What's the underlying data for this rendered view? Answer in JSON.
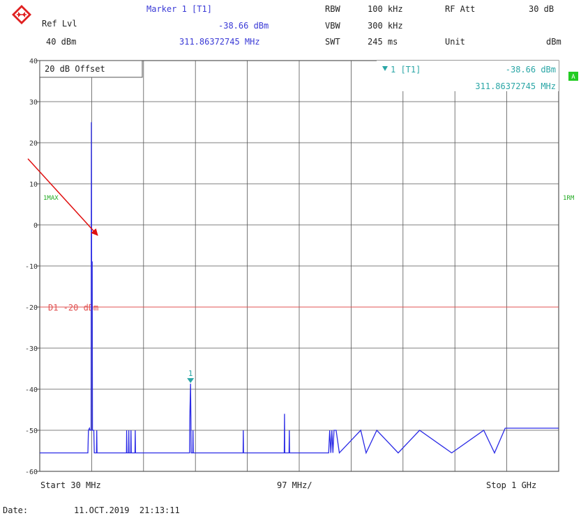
{
  "header": {
    "marker_title": "Marker 1 [T1]",
    "ref_lvl_label": "Ref Lvl",
    "ref_lvl_value": "40 dBm",
    "marker_level": "-38.66 dBm",
    "marker_freq": "311.86372745 MHz",
    "rbw_label": "RBW",
    "rbw_value": "100 kHz",
    "vbw_label": "VBW",
    "vbw_value": "300 kHz",
    "swt_label": "SWT",
    "swt_value": "245 ms",
    "rfatt_label": "RF Att",
    "rfatt_value": "30 dB",
    "unit_label": "Unit",
    "unit_value": "dBm"
  },
  "plot": {
    "offset_label": "20 dB Offset",
    "marker_box_label": "1  [T1]",
    "marker_box_level": "-38.66 dBm",
    "marker_box_freq": "311.86372745 MHz",
    "side_badge": "A",
    "left_trace_label": "1MAX",
    "right_trace_label": "1RM",
    "display_line_label": "D1 -20 dBm",
    "marker_number": "1"
  },
  "footer": {
    "start_label": "Start 30 MHz",
    "span_label": "97 MHz/",
    "stop_label": "Stop 1 GHz",
    "date_label": "Date:",
    "date_value": "11.OCT.2019  21:13:11"
  },
  "colors": {
    "trace": "#2a2ae6",
    "display_line": "#e05050",
    "marker": "#2aa6a6",
    "annotation_arrow": "#e01010",
    "grid": "#555555",
    "badge": "#22cc22"
  },
  "chart_data": {
    "type": "line",
    "title": "",
    "xlabel": "",
    "ylabel": "",
    "xlim": [
      30,
      1000
    ],
    "ylim": [
      -60,
      40
    ],
    "yticks": [
      40,
      30,
      20,
      10,
      0,
      -10,
      -20,
      -30,
      -40,
      -50,
      -60
    ],
    "ytick_labels": [
      "40",
      "30",
      "20",
      "10",
      "0",
      "-10",
      "-20",
      "-30",
      "-40",
      "-50",
      "-60"
    ],
    "x_units": "MHz",
    "y_units": "dBm",
    "grid": true,
    "display_line": -20,
    "marker": {
      "x": 311.86,
      "y": -38.66
    },
    "series": [
      {
        "x": [
          30,
          120,
          121,
          123,
          124,
          126,
          126.5,
          127,
          128,
          128.5,
          129,
          131,
          132,
          136,
          136.5,
          137,
          192,
          192.5,
          193,
          196,
          196.5,
          197,
          200,
          200.5,
          201,
          208,
          208.5,
          209,
          310,
          310.5,
          311.86,
          312.5,
          313,
          316,
          316.5,
          317,
          410,
          410.5,
          411,
          487,
          487.5,
          488,
          496,
          496.5,
          497,
          570,
          572,
          574,
          576,
          578,
          580,
          582,
          584,
          590,
          630,
          640,
          660,
          700,
          740,
          800,
          860,
          880,
          900,
          960,
          1000
        ],
        "y": [
          -55.5,
          -55.5,
          -50,
          -49.5,
          -50,
          -50,
          25,
          -9,
          -9,
          -50,
          -50,
          -50,
          -55.5,
          -55.5,
          -50,
          -55.5,
          -55.5,
          -50,
          -55.5,
          -55.5,
          -50,
          -55.5,
          -55.5,
          -50,
          -55.5,
          -55.5,
          -50,
          -55.5,
          -55.5,
          -47,
          -38.66,
          -47,
          -55.5,
          -55.5,
          -50,
          -55.5,
          -55.5,
          -50,
          -55.5,
          -55.5,
          -46,
          -55.5,
          -55.5,
          -50,
          -55.5,
          -55.5,
          -50,
          -55.5,
          -50,
          -55.5,
          -50,
          -50,
          -50,
          -55.5,
          -50,
          -55.5,
          -50,
          -55.5,
          -50,
          -55.5,
          -50,
          -55.5,
          -49.5,
          -49.5,
          -49.5
        ]
      }
    ]
  }
}
